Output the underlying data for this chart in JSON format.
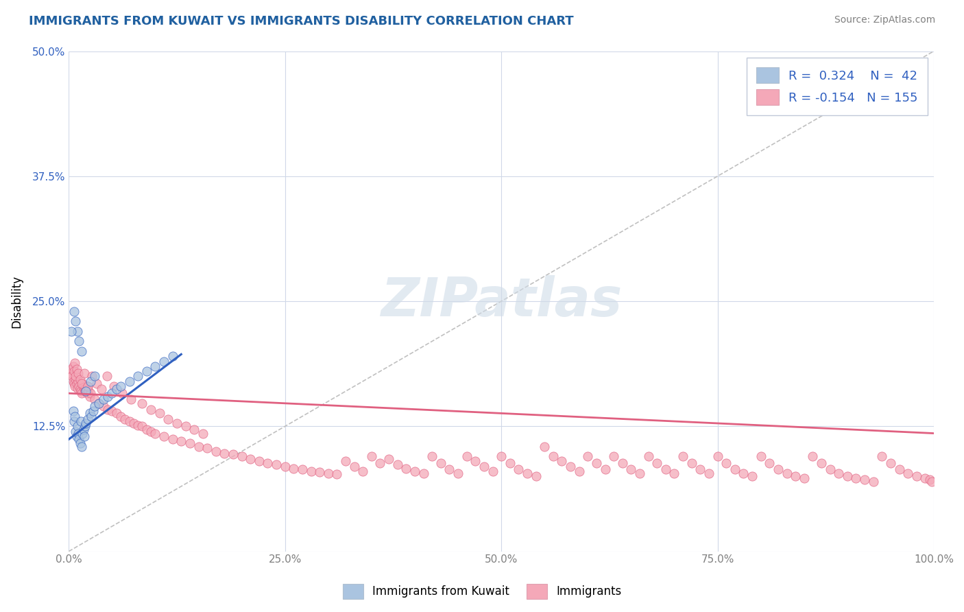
{
  "title": "IMMIGRANTS FROM KUWAIT VS IMMIGRANTS DISABILITY CORRELATION CHART",
  "source_text": "Source: ZipAtlas.com",
  "ylabel": "Disability",
  "legend_label1": "Immigrants from Kuwait",
  "legend_label2": "Immigrants",
  "R1": 0.324,
  "N1": 42,
  "R2": -0.154,
  "N2": 155,
  "xlim": [
    0.0,
    1.0
  ],
  "ylim": [
    0.0,
    0.5
  ],
  "xticks": [
    0.0,
    0.25,
    0.5,
    0.75,
    1.0
  ],
  "xticklabels": [
    "0.0%",
    "25.0%",
    "50.0%",
    "75.0%",
    "100.0%"
  ],
  "yticks": [
    0.0,
    0.125,
    0.25,
    0.375,
    0.5
  ],
  "yticklabels": [
    "",
    "12.5%",
    "25.0%",
    "37.5%",
    "50.0%"
  ],
  "blue_color": "#aac4e0",
  "pink_color": "#f4a8b8",
  "blue_line_color": "#3060c0",
  "pink_line_color": "#e06080",
  "diag_line_color": "#c0c0c0",
  "watermark_text": "ZIPatlas",
  "title_color": "#2060a0",
  "axis_color": "#808080",
  "grid_color": "#d0d8e8",
  "blue_scatter_x": [
    0.005,
    0.006,
    0.007,
    0.008,
    0.009,
    0.01,
    0.011,
    0.012,
    0.013,
    0.014,
    0.015,
    0.016,
    0.017,
    0.018,
    0.019,
    0.02,
    0.022,
    0.024,
    0.026,
    0.028,
    0.03,
    0.035,
    0.04,
    0.045,
    0.05,
    0.055,
    0.06,
    0.07,
    0.08,
    0.09,
    0.1,
    0.11,
    0.12,
    0.006,
    0.008,
    0.01,
    0.012,
    0.015,
    0.02,
    0.025,
    0.03,
    0.003
  ],
  "blue_scatter_y": [
    0.14,
    0.13,
    0.135,
    0.12,
    0.115,
    0.125,
    0.118,
    0.112,
    0.108,
    0.13,
    0.105,
    0.118,
    0.122,
    0.115,
    0.125,
    0.128,
    0.132,
    0.138,
    0.135,
    0.14,
    0.145,
    0.148,
    0.152,
    0.155,
    0.158,
    0.162,
    0.165,
    0.17,
    0.175,
    0.18,
    0.185,
    0.19,
    0.195,
    0.24,
    0.23,
    0.22,
    0.21,
    0.2,
    0.16,
    0.17,
    0.175,
    0.22
  ],
  "pink_scatter_x": [
    0.002,
    0.003,
    0.004,
    0.005,
    0.006,
    0.007,
    0.008,
    0.009,
    0.01,
    0.011,
    0.012,
    0.013,
    0.014,
    0.015,
    0.016,
    0.017,
    0.018,
    0.019,
    0.02,
    0.021,
    0.022,
    0.023,
    0.024,
    0.025,
    0.03,
    0.035,
    0.04,
    0.045,
    0.05,
    0.055,
    0.06,
    0.065,
    0.07,
    0.075,
    0.08,
    0.085,
    0.09,
    0.095,
    0.1,
    0.11,
    0.12,
    0.13,
    0.14,
    0.15,
    0.16,
    0.17,
    0.18,
    0.19,
    0.2,
    0.21,
    0.22,
    0.23,
    0.24,
    0.25,
    0.26,
    0.27,
    0.28,
    0.29,
    0.3,
    0.31,
    0.32,
    0.33,
    0.34,
    0.35,
    0.36,
    0.37,
    0.38,
    0.39,
    0.4,
    0.41,
    0.42,
    0.43,
    0.44,
    0.45,
    0.46,
    0.47,
    0.48,
    0.49,
    0.5,
    0.51,
    0.52,
    0.53,
    0.54,
    0.55,
    0.56,
    0.57,
    0.58,
    0.59,
    0.6,
    0.61,
    0.62,
    0.63,
    0.64,
    0.65,
    0.66,
    0.67,
    0.68,
    0.69,
    0.7,
    0.71,
    0.72,
    0.73,
    0.74,
    0.75,
    0.76,
    0.77,
    0.78,
    0.79,
    0.8,
    0.81,
    0.82,
    0.83,
    0.84,
    0.85,
    0.86,
    0.87,
    0.88,
    0.89,
    0.9,
    0.91,
    0.92,
    0.93,
    0.94,
    0.95,
    0.96,
    0.97,
    0.98,
    0.99,
    0.995,
    0.998,
    0.005,
    0.006,
    0.007,
    0.008,
    0.009,
    0.011,
    0.013,
    0.015,
    0.018,
    0.022,
    0.027,
    0.032,
    0.038,
    0.044,
    0.052,
    0.062,
    0.072,
    0.085,
    0.095,
    0.105,
    0.115,
    0.125,
    0.135,
    0.145,
    0.155
  ],
  "pink_scatter_y": [
    0.178,
    0.182,
    0.175,
    0.17,
    0.168,
    0.165,
    0.172,
    0.168,
    0.163,
    0.17,
    0.165,
    0.162,
    0.16,
    0.158,
    0.168,
    0.164,
    0.162,
    0.16,
    0.162,
    0.158,
    0.165,
    0.16,
    0.155,
    0.158,
    0.152,
    0.148,
    0.145,
    0.142,
    0.14,
    0.138,
    0.135,
    0.132,
    0.13,
    0.128,
    0.126,
    0.125,
    0.122,
    0.12,
    0.118,
    0.115,
    0.112,
    0.11,
    0.108,
    0.105,
    0.103,
    0.1,
    0.098,
    0.097,
    0.095,
    0.092,
    0.09,
    0.088,
    0.087,
    0.085,
    0.083,
    0.082,
    0.08,
    0.079,
    0.078,
    0.077,
    0.09,
    0.085,
    0.08,
    0.095,
    0.088,
    0.092,
    0.087,
    0.083,
    0.08,
    0.078,
    0.095,
    0.088,
    0.082,
    0.078,
    0.095,
    0.09,
    0.085,
    0.08,
    0.095,
    0.088,
    0.082,
    0.078,
    0.075,
    0.105,
    0.095,
    0.09,
    0.085,
    0.08,
    0.095,
    0.088,
    0.082,
    0.095,
    0.088,
    0.082,
    0.078,
    0.095,
    0.088,
    0.082,
    0.078,
    0.095,
    0.088,
    0.082,
    0.078,
    0.095,
    0.088,
    0.082,
    0.078,
    0.075,
    0.095,
    0.088,
    0.082,
    0.078,
    0.075,
    0.073,
    0.095,
    0.088,
    0.082,
    0.078,
    0.075,
    0.073,
    0.072,
    0.07,
    0.095,
    0.088,
    0.082,
    0.078,
    0.075,
    0.073,
    0.072,
    0.07,
    0.185,
    0.18,
    0.188,
    0.175,
    0.182,
    0.178,
    0.172,
    0.168,
    0.178,
    0.165,
    0.175,
    0.168,
    0.162,
    0.175,
    0.165,
    0.158,
    0.152,
    0.148,
    0.142,
    0.138,
    0.132,
    0.128,
    0.125,
    0.122,
    0.118
  ]
}
